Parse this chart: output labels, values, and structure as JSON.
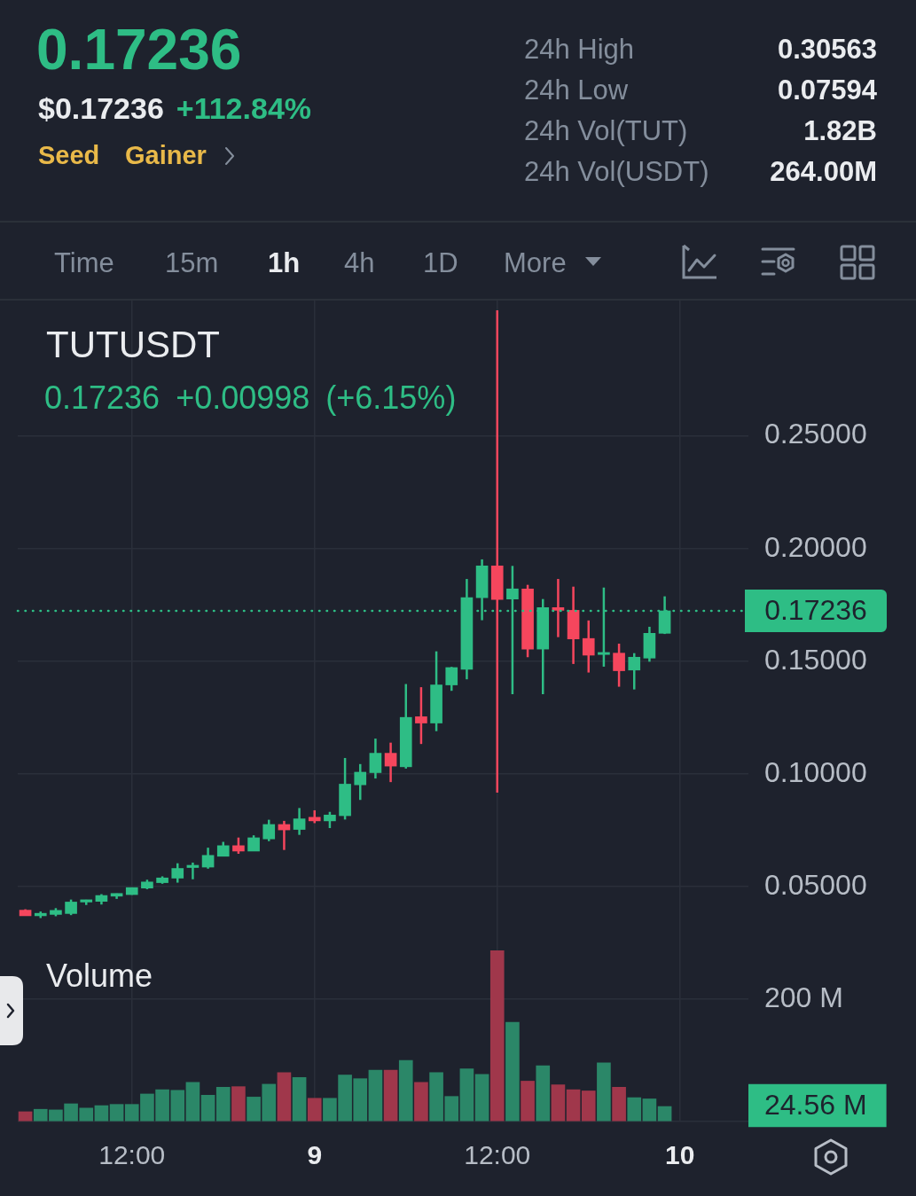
{
  "chart_data": [
    {
      "type": "other",
      "title": "0.17236",
      "annotations": [
        "$0.17236",
        "+112.84%",
        "Seed",
        "Gainer",
        "24h High",
        "0.30563",
        "24h Low",
        "0.07594",
        "24h Vol(TUT)",
        "1.82B",
        "24h Vol(USDT)",
        "264.00M",
        "Time",
        "15m",
        "1h",
        "4h",
        "1D",
        "More"
      ]
    },
    {
      "type": "candlestick",
      "title": "TUTUSDT",
      "subtitle": "0.17236 +0.00998 (+6.15%)",
      "categories": [
        null,
        null,
        null,
        null,
        null,
        null,
        null,
        null,
        null,
        null,
        null,
        null,
        null,
        null,
        null,
        null,
        null,
        null,
        null,
        null,
        null,
        null,
        null,
        null,
        null,
        null,
        null,
        null,
        null,
        null,
        null,
        null,
        null,
        null,
        null,
        null,
        null,
        null,
        null,
        null,
        null,
        null,
        null,
        null,
        null,
        null,
        null,
        null
      ],
      "ohlc": [
        [
          0.0396,
          0.04,
          0.0371,
          0.0371
        ],
        [
          0.0371,
          0.039,
          0.0361,
          0.0382
        ],
        [
          0.0377,
          0.0405,
          0.0369,
          0.0395
        ],
        [
          0.0381,
          0.0443,
          0.0374,
          0.0432
        ],
        [
          0.0432,
          0.0442,
          0.0419,
          0.0442
        ],
        [
          0.0435,
          0.0467,
          0.0421,
          0.0461
        ],
        [
          0.0458,
          0.047,
          0.0446,
          0.047
        ],
        [
          0.0465,
          0.0497,
          0.0464,
          0.0496
        ],
        [
          0.0494,
          0.0531,
          0.0489,
          0.0521
        ],
        [
          0.0518,
          0.0546,
          0.0513,
          0.0539
        ],
        [
          0.0538,
          0.0604,
          0.0518,
          0.0581
        ],
        [
          0.0585,
          0.0607,
          0.0533,
          0.0595
        ],
        [
          0.0587,
          0.0673,
          0.058,
          0.0639
        ],
        [
          0.0635,
          0.0699,
          0.0635,
          0.0682
        ],
        [
          0.0682,
          0.0718,
          0.0646,
          0.0658
        ],
        [
          0.0658,
          0.0728,
          0.0658,
          0.0717
        ],
        [
          0.0712,
          0.0797,
          0.0702,
          0.0776
        ],
        [
          0.0776,
          0.0792,
          0.0663,
          0.0752
        ],
        [
          0.0754,
          0.0849,
          0.073,
          0.0801
        ],
        [
          0.0808,
          0.0839,
          0.0782,
          0.0792
        ],
        [
          0.0792,
          0.0832,
          0.076,
          0.0818
        ],
        [
          0.0815,
          0.1071,
          0.0798,
          0.0955
        ],
        [
          0.0952,
          0.1044,
          0.0885,
          0.1008
        ],
        [
          0.1006,
          0.1157,
          0.098,
          0.1092
        ],
        [
          0.1092,
          0.1139,
          0.0964,
          0.1035
        ],
        [
          0.1032,
          0.1399,
          0.1024,
          0.1251
        ],
        [
          0.1254,
          0.1385,
          0.1133,
          0.1226
        ],
        [
          0.1226,
          0.1544,
          0.119,
          0.1395
        ],
        [
          0.1395,
          0.1475,
          0.1369,
          0.1472
        ],
        [
          0.1464,
          0.1865,
          0.142,
          0.1782
        ],
        [
          0.1782,
          0.1952,
          0.1682,
          0.1923
        ],
        [
          0.1923,
          0.30563,
          0.0917,
          0.1774
        ],
        [
          0.1776,
          0.1923,
          0.1354,
          0.1821
        ],
        [
          0.1821,
          0.1839,
          0.1518,
          0.1554
        ],
        [
          0.1554,
          0.1776,
          0.1354,
          0.1738
        ],
        [
          0.1738,
          0.1865,
          0.1607,
          0.1726
        ],
        [
          0.1726,
          0.1831,
          0.1488,
          0.1599
        ],
        [
          0.1601,
          0.1681,
          0.145,
          0.1527
        ],
        [
          0.153,
          0.1827,
          0.1476,
          0.1539
        ],
        [
          0.1536,
          0.1578,
          0.1387,
          0.1458
        ],
        [
          0.1461,
          0.1536,
          0.1375,
          0.1518
        ],
        [
          0.1514,
          0.1653,
          0.1498,
          0.1624
        ],
        [
          0.1624,
          0.1788,
          0.1621,
          0.17236
        ],
        null,
        null,
        null,
        null,
        null
      ],
      "colors": [
        "#f6465d",
        "#2ebd85",
        "#2ebd85",
        "#2ebd85",
        "#2ebd85",
        "#2ebd85",
        "#2ebd85",
        "#2ebd85",
        "#2ebd85",
        "#2ebd85",
        "#2ebd85",
        "#2ebd85",
        "#2ebd85",
        "#2ebd85",
        "#f6465d",
        "#2ebd85",
        "#2ebd85",
        "#f6465d",
        "#2ebd85",
        "#f6465d",
        "#2ebd85",
        "#2ebd85",
        "#2ebd85",
        "#2ebd85",
        "#f6465d",
        "#2ebd85",
        "#f6465d",
        "#2ebd85",
        "#2ebd85",
        "#2ebd85",
        "#2ebd85",
        "#f6465d",
        "#2ebd85",
        "#f6465d",
        "#2ebd85",
        "#f6465d",
        "#f6465d",
        "#f6465d",
        "#2ebd85",
        "#f6465d",
        "#2ebd85",
        "#2ebd85",
        "#2ebd85",
        null,
        null,
        null,
        null,
        null
      ],
      "ylim": [
        0.03,
        0.31
      ],
      "yticks": [
        {
          "value": 0.05,
          "label": "0.05000"
        },
        {
          "value": 0.1,
          "label": "0.10000"
        },
        {
          "value": 0.15,
          "label": "0.15000"
        },
        {
          "value": 0.2,
          "label": "0.20000"
        },
        {
          "value": 0.25,
          "label": "0.25000"
        }
      ],
      "ref_lines": [
        {
          "axis": "y",
          "value": 0.17236,
          "label": "0.17236",
          "color": "#2ebd85",
          "line_style": "dotted"
        }
      ],
      "grid": true,
      "tick_labels": "y"
    },
    {
      "type": "bar",
      "title": "Volume",
      "categories": [
        null,
        null,
        null,
        null,
        null,
        null,
        null,
        "12:00",
        null,
        null,
        null,
        null,
        null,
        null,
        null,
        null,
        null,
        null,
        null,
        "9",
        null,
        null,
        null,
        null,
        null,
        null,
        null,
        null,
        null,
        null,
        null,
        "12:00",
        null,
        null,
        null,
        null,
        null,
        null,
        null,
        null,
        null,
        null,
        null,
        "10",
        null,
        null,
        null,
        null
      ],
      "values": [
        16,
        20,
        19,
        29,
        22,
        26,
        28,
        28,
        45,
        52,
        51,
        64,
        43,
        56,
        57,
        40,
        61,
        80,
        72,
        38,
        38,
        76,
        70,
        84,
        84,
        100,
        64,
        80,
        41,
        86,
        77,
        279,
        162,
        66,
        91,
        60,
        52,
        50,
        96,
        56,
        39,
        37,
        24.56,
        null,
        null,
        null,
        null,
        null
      ],
      "colors": [
        "#a0374b",
        "#2b8768",
        "#2b8768",
        "#2b8768",
        "#2b8768",
        "#2b8768",
        "#2b8768",
        "#2b8768",
        "#2b8768",
        "#2b8768",
        "#2b8768",
        "#2b8768",
        "#2b8768",
        "#2b8768",
        "#a0374b",
        "#2b8768",
        "#2b8768",
        "#a0374b",
        "#2b8768",
        "#a0374b",
        "#2b8768",
        "#2b8768",
        "#2b8768",
        "#2b8768",
        "#a0374b",
        "#2b8768",
        "#a0374b",
        "#2b8768",
        "#2b8768",
        "#2b8768",
        "#2b8768",
        "#a0374b",
        "#2b8768",
        "#a0374b",
        "#2b8768",
        "#a0374b",
        "#a0374b",
        "#a0374b",
        "#2b8768",
        "#a0374b",
        "#2b8768",
        "#2b8768",
        "#2b8768",
        null,
        null,
        null,
        null,
        null
      ],
      "ylim": [
        0,
        310
      ],
      "yticks": [
        {
          "value": 0,
          "label": null
        },
        {
          "value": 24.56,
          "label": "24.56 M"
        },
        {
          "value": 200,
          "label": "200 M"
        }
      ],
      "grid": true
    }
  ]
}
